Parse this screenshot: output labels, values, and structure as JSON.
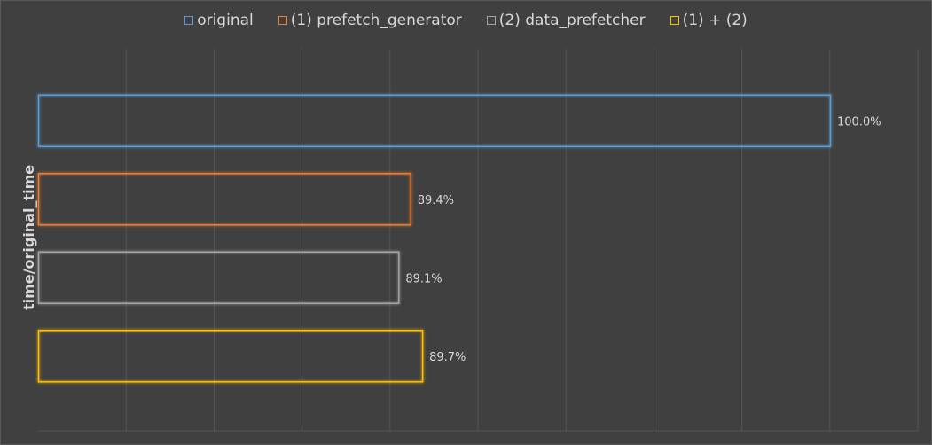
{
  "chart_data": {
    "type": "bar",
    "orientation": "horizontal",
    "ylabel": "time/original_time",
    "xlim": [
      0,
      1.1
    ],
    "grid": true,
    "legend_position": "top",
    "series": [
      {
        "name": "original",
        "value": 1.0,
        "label": "100.0%",
        "color": "#5b9bd5"
      },
      {
        "name": "(1) prefetch_generator",
        "value": 0.894,
        "label": "89.4%",
        "color": "#ed7d31"
      },
      {
        "name": "(2) data_prefetcher",
        "value": 0.891,
        "label": "89.1%",
        "color": "#a5a5a5"
      },
      {
        "name": "(1) + (2)",
        "value": 0.897,
        "label": "89.7%",
        "color": "#ffc000"
      }
    ]
  }
}
